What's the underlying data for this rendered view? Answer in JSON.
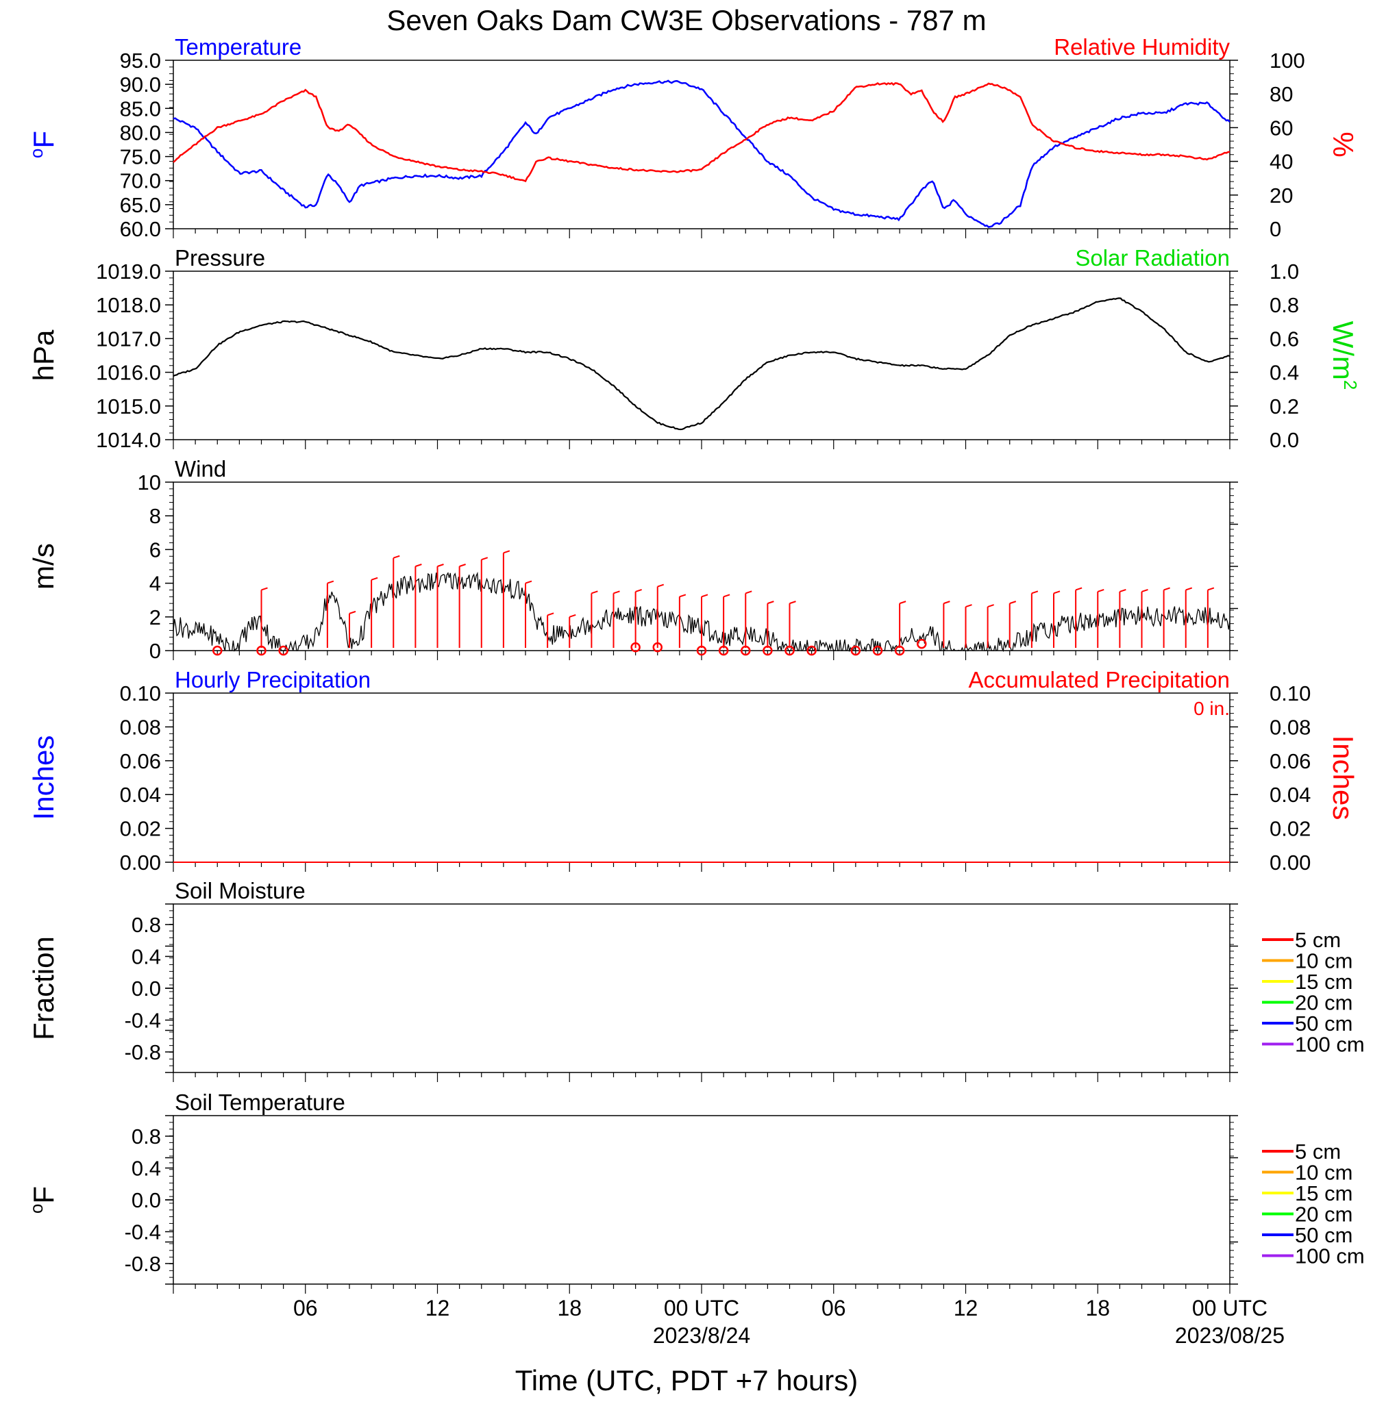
{
  "title": "Seven Oaks Dam CW3E Observations - 787 m",
  "x_axis": {
    "label": "Time (UTC, PDT +7 hours)",
    "ticks": [
      {
        "hour": 6,
        "label": "06",
        "date": ""
      },
      {
        "hour": 12,
        "label": "12",
        "date": ""
      },
      {
        "hour": 18,
        "label": "18",
        "date": ""
      },
      {
        "hour": 24,
        "label": "00 UTC",
        "date": "2023/8/24"
      },
      {
        "hour": 30,
        "label": "06",
        "date": ""
      },
      {
        "hour": 36,
        "label": "12",
        "date": ""
      },
      {
        "hour": 42,
        "label": "18",
        "date": ""
      },
      {
        "hour": 48,
        "label": "00 UTC",
        "date": "2023/08/25"
      }
    ]
  },
  "panels": {
    "temp": {
      "left_title": "Temperature",
      "right_title": "Relative Humidity",
      "left_unit": "F",
      "left_unit_sup": "o",
      "right_unit": "%",
      "left_ticks": [
        "95.0",
        "90.0",
        "85.0",
        "80.0",
        "75.0",
        "70.0",
        "65.0",
        "60.0"
      ],
      "right_ticks": [
        "100",
        "80",
        "60",
        "40",
        "20",
        "0"
      ],
      "colors": {
        "left": "#0000ff",
        "right": "#ff0000"
      }
    },
    "pressure": {
      "left_title": "Pressure",
      "right_title": "Solar Radiation",
      "left_unit": "hPa",
      "right_unit": "W/m",
      "right_unit_sup": "2",
      "left_ticks": [
        "1019.0",
        "1018.0",
        "1017.0",
        "1016.0",
        "1015.0",
        "1014.0"
      ],
      "right_ticks": [
        "1.0",
        "0.8",
        "0.6",
        "0.4",
        "0.2",
        "0.0"
      ],
      "colors": {
        "right": "#00dd00"
      }
    },
    "wind": {
      "left_title": "Wind",
      "left_unit": "m/s",
      "left_ticks": [
        "10",
        "8",
        "6",
        "4",
        "2",
        "0"
      ]
    },
    "precip": {
      "left_title": "Hourly Precipitation",
      "right_title": "Accumulated Precipitation",
      "accum_label": "0 in.",
      "left_unit": "Inches",
      "right_unit": "Inches",
      "left_ticks": [
        "0.10",
        "0.08",
        "0.06",
        "0.04",
        "0.02",
        "0.00"
      ],
      "right_ticks": [
        "0.10",
        "0.08",
        "0.06",
        "0.04",
        "0.02",
        "0.00"
      ],
      "colors": {
        "left": "#0000ff",
        "right": "#ff0000"
      }
    },
    "soil_moisture": {
      "left_title": "Soil Moisture",
      "left_unit": "Fraction",
      "left_ticks": [
        "0.8",
        "0.4",
        "0.0",
        "-0.4",
        "-0.8"
      ]
    },
    "soil_temp": {
      "left_title": "Soil Temperature",
      "left_unit": "F",
      "left_unit_sup": "o",
      "left_ticks": [
        "0.8",
        "0.4",
        "0.0",
        "-0.4",
        "-0.8"
      ]
    }
  },
  "soil_legend": [
    {
      "label": "5 cm",
      "color": "#ff0000"
    },
    {
      "label": "10 cm",
      "color": "#ffa500"
    },
    {
      "label": "15 cm",
      "color": "#ffff00"
    },
    {
      "label": "20 cm",
      "color": "#00ff00"
    },
    {
      "label": "50 cm",
      "color": "#0000ff"
    },
    {
      "label": "100 cm",
      "color": "#a020f0"
    }
  ],
  "chart_data": [
    {
      "type": "line",
      "name": "temperature",
      "units": "F",
      "ylim": [
        60,
        95
      ],
      "x_hours": [
        0,
        1,
        2,
        3,
        4,
        5,
        6,
        6.5,
        7,
        7.5,
        8,
        8.5,
        9,
        10,
        11,
        12,
        13,
        14,
        15,
        16,
        16.5,
        17,
        18,
        19,
        20,
        21,
        22,
        23,
        24,
        25,
        26,
        27,
        28,
        29,
        30,
        31,
        32,
        33,
        33.5,
        34,
        34.5,
        35,
        35.5,
        36,
        37,
        37.5,
        38,
        38.5,
        39,
        40,
        41,
        42,
        43,
        44,
        45,
        46,
        47,
        48
      ],
      "values": [
        83,
        81,
        76,
        71.5,
        72,
        68,
        64.5,
        65,
        71.5,
        69,
        65.5,
        69,
        69.5,
        70.5,
        71,
        71,
        70.5,
        71,
        76,
        82,
        79.5,
        83,
        85,
        87,
        89,
        90,
        90.5,
        90.5,
        89,
        84,
        79,
        74,
        71,
        66.5,
        64,
        63,
        62.5,
        62,
        65,
        68,
        70,
        64,
        66,
        63,
        60.5,
        61,
        63,
        65,
        73,
        77,
        79,
        81,
        83,
        84,
        84,
        86,
        86,
        82
      ]
    },
    {
      "type": "line",
      "name": "relative_humidity",
      "units": "%",
      "ylim": [
        0,
        100
      ],
      "x_hours": [
        0,
        1,
        2,
        3,
        4,
        5,
        6,
        6.5,
        7,
        7.5,
        8,
        8.5,
        9,
        10,
        11,
        12,
        13,
        14,
        15,
        16,
        16.5,
        17,
        18,
        19,
        20,
        21,
        22,
        23,
        24,
        25,
        26,
        27,
        28,
        29,
        30,
        31,
        32,
        33,
        33.5,
        34,
        34.5,
        35,
        35.5,
        36,
        37,
        37.5,
        38,
        38.5,
        39,
        40,
        41,
        42,
        43,
        44,
        45,
        46,
        47,
        48
      ],
      "values": [
        40,
        50,
        60,
        64,
        68,
        76,
        82,
        78,
        60,
        58,
        62,
        56,
        50,
        43,
        40,
        37,
        35,
        34,
        32,
        28,
        40,
        42,
        40,
        38,
        36,
        35,
        34,
        34,
        35,
        45,
        53,
        62,
        66,
        64,
        70,
        84,
        86,
        86,
        80,
        82,
        70,
        63,
        78,
        80,
        86,
        85,
        82,
        78,
        62,
        52,
        48,
        46,
        45,
        44,
        44,
        43,
        41,
        46
      ]
    },
    {
      "type": "line",
      "name": "pressure",
      "units": "hPa",
      "ylim": [
        1014,
        1019
      ],
      "x_hours": [
        0,
        1,
        2,
        3,
        4,
        5,
        6,
        7,
        8,
        9,
        10,
        11,
        12,
        13,
        14,
        15,
        16,
        17,
        18,
        19,
        20,
        21,
        22,
        23,
        24,
        25,
        26,
        27,
        28,
        29,
        30,
        31,
        32,
        33,
        34,
        35,
        36,
        37,
        38,
        39,
        40,
        41,
        42,
        43,
        44,
        45,
        46,
        47,
        48
      ],
      "values": [
        1015.9,
        1016.1,
        1016.8,
        1017.2,
        1017.4,
        1017.5,
        1017.5,
        1017.3,
        1017.1,
        1016.9,
        1016.6,
        1016.5,
        1016.4,
        1016.5,
        1016.7,
        1016.7,
        1016.6,
        1016.6,
        1016.4,
        1016.1,
        1015.6,
        1015.0,
        1014.5,
        1014.3,
        1014.5,
        1015.1,
        1015.8,
        1016.3,
        1016.5,
        1016.6,
        1016.6,
        1016.4,
        1016.3,
        1016.2,
        1016.2,
        1016.1,
        1016.1,
        1016.5,
        1017.1,
        1017.4,
        1017.6,
        1017.8,
        1018.1,
        1018.2,
        1017.8,
        1017.3,
        1016.6,
        1016.3,
        1016.5
      ]
    },
    {
      "type": "line",
      "name": "wind_speed",
      "units": "m/s",
      "ylim": [
        0,
        10
      ],
      "x_hours": [
        0,
        1,
        2,
        2.5,
        3,
        3.5,
        4,
        4.5,
        5,
        5.5,
        6,
        6.5,
        7,
        7.5,
        8,
        8.5,
        9,
        10,
        11,
        12,
        13,
        14,
        15,
        16,
        16.5,
        17,
        18,
        19,
        20,
        21,
        22,
        23,
        24,
        25,
        26,
        27,
        28,
        29,
        30,
        31,
        32,
        33,
        33.5,
        34,
        34.5,
        35,
        35.5,
        36,
        37,
        38,
        39,
        40,
        41,
        42,
        43,
        44,
        45,
        46,
        47,
        48
      ],
      "values": [
        1.5,
        1.2,
        0.8,
        0.2,
        0.4,
        1.5,
        1.8,
        0.5,
        0.1,
        0.1,
        0.4,
        0.8,
        3.2,
        2.8,
        0.2,
        0.8,
        2.5,
        3.6,
        4.0,
        4.1,
        4.2,
        4.0,
        3.8,
        3.4,
        1.8,
        0.8,
        1.2,
        1.6,
        2.0,
        2.1,
        1.9,
        1.7,
        1.4,
        0.7,
        1.0,
        0.8,
        0.1,
        0.1,
        0.1,
        0.1,
        0.1,
        0.2,
        1.2,
        0.3,
        1.0,
        0.1,
        0.05,
        0.05,
        0.1,
        0.3,
        1.0,
        1.4,
        1.7,
        1.8,
        1.9,
        2.1,
        2.0,
        2.1,
        2.0,
        1.7
      ]
    },
    {
      "type": "scatter",
      "name": "wind_barbs",
      "units": "m/s",
      "x_hours": [
        4,
        7,
        8,
        9,
        10,
        11,
        12,
        13,
        14,
        15,
        16,
        17,
        18,
        19,
        20,
        21,
        22,
        23,
        24,
        25,
        26,
        27,
        28,
        33,
        35,
        36,
        37,
        38,
        39,
        40,
        41,
        42,
        43,
        44,
        45,
        46,
        47
      ],
      "values": [
        3.6,
        4.0,
        2.2,
        4.2,
        5.5,
        5.0,
        5.0,
        5.0,
        5.4,
        5.8,
        4.0,
        2.1,
        2.0,
        3.4,
        3.4,
        3.5,
        3.8,
        3.2,
        3.2,
        3.2,
        3.4,
        2.8,
        2.8,
        2.8,
        2.8,
        2.6,
        2.6,
        2.8,
        3.4,
        3.4,
        3.6,
        3.5,
        3.5,
        3.5,
        3.6,
        3.6,
        3.6
      ]
    },
    {
      "type": "scatter",
      "name": "calm_markers",
      "units": "m/s",
      "x_hours": [
        2,
        4,
        5,
        21,
        22,
        24,
        25,
        26,
        27,
        28,
        29,
        31,
        32,
        33,
        34
      ],
      "values": [
        0,
        0,
        0,
        0.2,
        0.2,
        0,
        0,
        0,
        0,
        0,
        0,
        0,
        0,
        0,
        0.4
      ]
    },
    {
      "type": "line",
      "name": "hourly_precipitation",
      "units": "in",
      "ylim": [
        0,
        0.1
      ],
      "x_hours": [
        0,
        48
      ],
      "values": [
        0,
        0
      ]
    },
    {
      "type": "line",
      "name": "accumulated_precipitation",
      "units": "in",
      "ylim": [
        0,
        0.1
      ],
      "x_hours": [
        0,
        48
      ],
      "values": [
        0,
        0
      ]
    }
  ]
}
